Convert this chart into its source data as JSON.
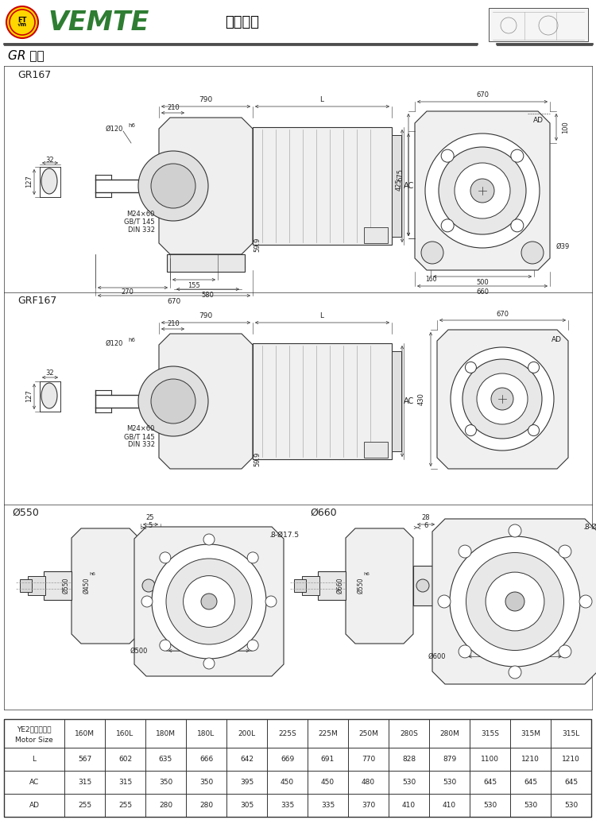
{
  "title_logo_text": "VEMTE",
  "title_center": "减速电机",
  "subtitle": "GR 系列",
  "bg_color": "#ffffff",
  "section1_label": "GR167",
  "section2_label": "GRF167",
  "section3_label1": "Ø550",
  "section3_label2": "Ø660",
  "table_headers": [
    "YE2电机机座号\nMotor Size",
    "160M",
    "160L",
    "180M",
    "180L",
    "200L",
    "225S",
    "225M",
    "250M",
    "280S",
    "280M",
    "315S",
    "315M",
    "315L"
  ],
  "table_rows": [
    [
      "L",
      "567",
      "602",
      "635",
      "666",
      "642",
      "669",
      "691",
      "770",
      "828",
      "879",
      "1100",
      "1210",
      "1210"
    ],
    [
      "AC",
      "315",
      "315",
      "350",
      "350",
      "395",
      "450",
      "450",
      "480",
      "530",
      "530",
      "645",
      "645",
      "645"
    ],
    [
      "AD",
      "255",
      "255",
      "280",
      "280",
      "305",
      "335",
      "335",
      "370",
      "410",
      "410",
      "530",
      "530",
      "530"
    ]
  ],
  "line_color": "#333333",
  "dim_color": "#333333"
}
